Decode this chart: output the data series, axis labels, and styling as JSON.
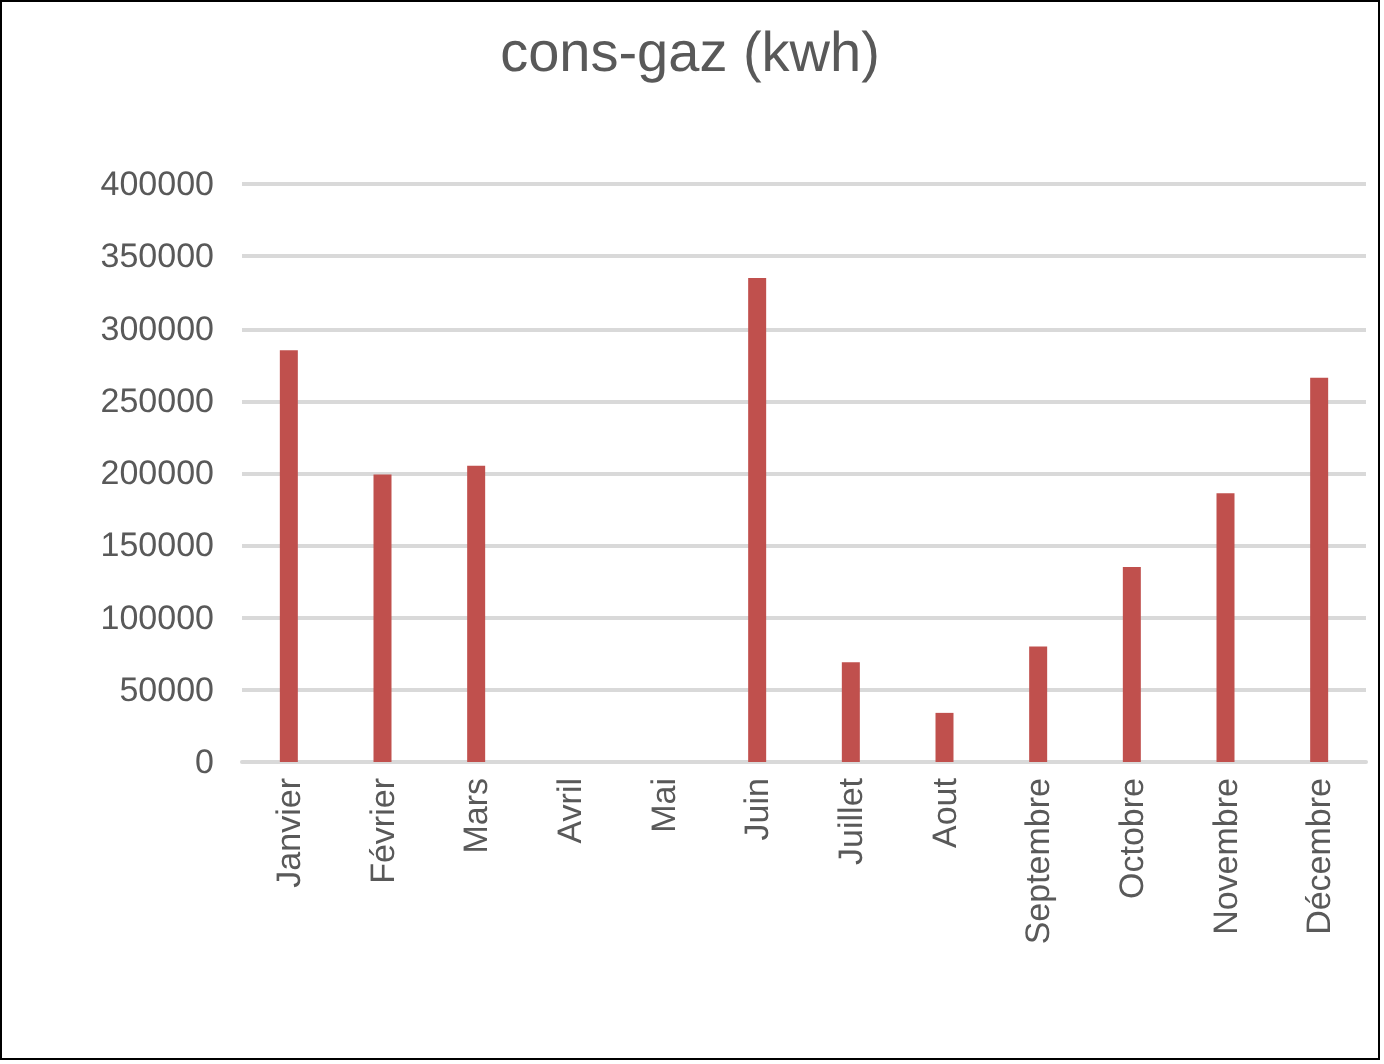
{
  "chart_data": {
    "type": "bar",
    "title": "cons-gaz (kwh)",
    "categories": [
      "Janvier",
      "Février",
      "Mars",
      "Avril",
      "Mai",
      "Juin",
      "Juillet",
      "Aout",
      "Septembre",
      "Octobre",
      "Novembre",
      "Décembre"
    ],
    "values": [
      285000,
      199000,
      205000,
      0,
      0,
      335000,
      69000,
      34000,
      80000,
      135000,
      186000,
      266000
    ],
    "color": "#c0504d",
    "ylim": [
      0,
      400000
    ],
    "yticks": [
      0,
      50000,
      100000,
      150000,
      200000,
      250000,
      300000,
      350000,
      400000
    ],
    "grid": "y"
  }
}
